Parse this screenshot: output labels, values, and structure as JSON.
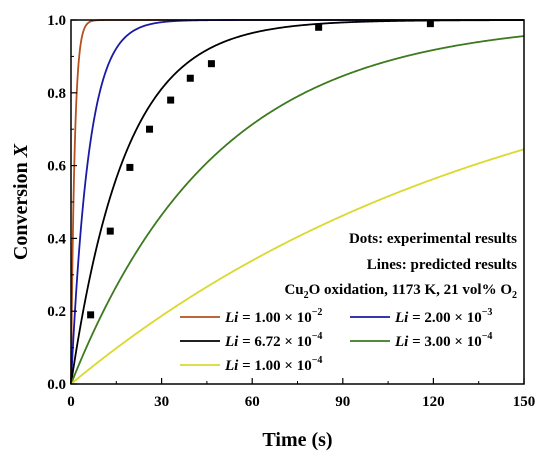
{
  "chart_data": {
    "type": "line",
    "xlabel": "Time (s)",
    "ylabel_text": "Conversion",
    "ylabel_var": "X",
    "xlim": [
      0,
      150
    ],
    "ylim": [
      0,
      1.0
    ],
    "x_ticks": [
      0,
      30,
      60,
      90,
      120,
      150
    ],
    "y_ticks": [
      "0.0",
      "0.2",
      "0.4",
      "0.6",
      "0.8",
      "1.0"
    ],
    "y_tick_values": [
      0,
      0.2,
      0.4,
      0.6,
      0.8,
      1.0
    ],
    "grid": false,
    "legend_placement": "bottom-right",
    "annotations": {
      "line1": "Dots: experimental results",
      "line2": "Lines: predicted results",
      "line3_pre": "Cu",
      "line3_sub1": "2",
      "line3_mid": "O oxidation, 1173 K, 21 vol% O",
      "line3_sub2": "2"
    },
    "series": [
      {
        "name": "Li = 1.00 × 10−2",
        "var": "Li",
        "mant": "1.00",
        "exp": "−2",
        "color": "#b5501f",
        "rate": 0.85
      },
      {
        "name": "Li = 2.00 × 10−3",
        "var": "Li",
        "mant": "2.00",
        "exp": "−3",
        "color": "#1a1aa6",
        "rate": 0.17
      },
      {
        "name": "Li = 6.72 × 10−4",
        "var": "Li",
        "mant": "6.72",
        "exp": "−4",
        "color": "#000000",
        "rate": 0.0555
      },
      {
        "name": "Li = 3.00 × 10−4",
        "var": "Li",
        "mant": "3.00",
        "exp": "−4",
        "color": "#3d7a1f",
        "rate": 0.0208
      },
      {
        "name": "Li = 1.00 × 10−4",
        "var": "Li",
        "mant": "1.00",
        "exp": "−4",
        "color": "#d9d92e",
        "rate": 0.0069
      }
    ],
    "experimental": {
      "x": [
        6.5,
        13,
        19.5,
        26,
        33,
        39.5,
        46.5,
        82,
        119
      ],
      "y": [
        0.19,
        0.42,
        0.595,
        0.7,
        0.78,
        0.84,
        0.88,
        0.98,
        0.99
      ]
    }
  }
}
